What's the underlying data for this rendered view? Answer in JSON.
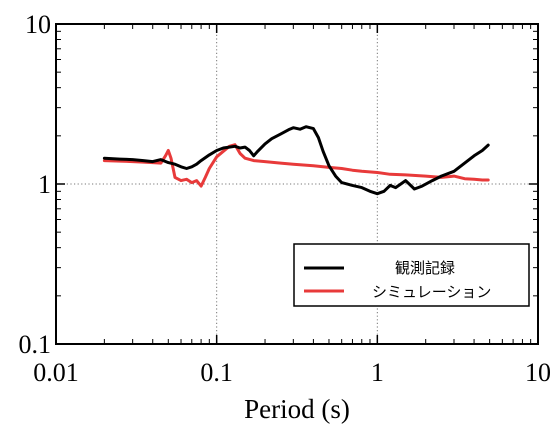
{
  "chart_data": {
    "type": "line",
    "xlabel": "Period (s)",
    "ylabel": "",
    "xscale": "log",
    "yscale": "log",
    "xlim": [
      0.01,
      10
    ],
    "ylim": [
      0.1,
      10
    ],
    "x_ticks": [
      {
        "value": 0.01,
        "label": "0.01"
      },
      {
        "value": 0.1,
        "label": "0.1"
      },
      {
        "value": 1,
        "label": "1"
      },
      {
        "value": 10,
        "label": "10"
      }
    ],
    "y_ticks": [
      {
        "value": 0.1,
        "label": "0.1"
      },
      {
        "value": 1,
        "label": "1"
      },
      {
        "value": 10,
        "label": "10"
      }
    ],
    "grid": "dotted at major ticks",
    "legend_position": "bottom-right",
    "series": [
      {
        "name": "観測記録",
        "color": "#000000",
        "points": [
          [
            0.02,
            1.45
          ],
          [
            0.025,
            1.43
          ],
          [
            0.03,
            1.42
          ],
          [
            0.035,
            1.4
          ],
          [
            0.04,
            1.38
          ],
          [
            0.045,
            1.42
          ],
          [
            0.05,
            1.36
          ],
          [
            0.055,
            1.33
          ],
          [
            0.06,
            1.28
          ],
          [
            0.065,
            1.25
          ],
          [
            0.07,
            1.28
          ],
          [
            0.075,
            1.33
          ],
          [
            0.08,
            1.4
          ],
          [
            0.09,
            1.52
          ],
          [
            0.1,
            1.62
          ],
          [
            0.11,
            1.68
          ],
          [
            0.12,
            1.7
          ],
          [
            0.13,
            1.72
          ],
          [
            0.14,
            1.68
          ],
          [
            0.15,
            1.7
          ],
          [
            0.16,
            1.62
          ],
          [
            0.17,
            1.5
          ],
          [
            0.18,
            1.6
          ],
          [
            0.2,
            1.78
          ],
          [
            0.22,
            1.92
          ],
          [
            0.25,
            2.05
          ],
          [
            0.28,
            2.18
          ],
          [
            0.3,
            2.25
          ],
          [
            0.33,
            2.2
          ],
          [
            0.36,
            2.28
          ],
          [
            0.4,
            2.22
          ],
          [
            0.43,
            1.95
          ],
          [
            0.46,
            1.6
          ],
          [
            0.5,
            1.3
          ],
          [
            0.55,
            1.12
          ],
          [
            0.6,
            1.02
          ],
          [
            0.7,
            0.98
          ],
          [
            0.8,
            0.95
          ],
          [
            0.9,
            0.9
          ],
          [
            1.0,
            0.87
          ],
          [
            1.1,
            0.9
          ],
          [
            1.2,
            0.98
          ],
          [
            1.3,
            0.95
          ],
          [
            1.4,
            1.0
          ],
          [
            1.5,
            1.05
          ],
          [
            1.7,
            0.93
          ],
          [
            1.9,
            0.97
          ],
          [
            2.2,
            1.05
          ],
          [
            2.5,
            1.12
          ],
          [
            3.0,
            1.2
          ],
          [
            3.5,
            1.35
          ],
          [
            4.0,
            1.5
          ],
          [
            4.5,
            1.62
          ],
          [
            4.9,
            1.75
          ]
        ]
      },
      {
        "name": "シミュレーション",
        "color": "#e83a3a",
        "points": [
          [
            0.02,
            1.4
          ],
          [
            0.025,
            1.39
          ],
          [
            0.03,
            1.38
          ],
          [
            0.035,
            1.37
          ],
          [
            0.04,
            1.36
          ],
          [
            0.045,
            1.35
          ],
          [
            0.048,
            1.5
          ],
          [
            0.05,
            1.62
          ],
          [
            0.052,
            1.45
          ],
          [
            0.055,
            1.1
          ],
          [
            0.06,
            1.05
          ],
          [
            0.065,
            1.07
          ],
          [
            0.07,
            1.02
          ],
          [
            0.075,
            1.05
          ],
          [
            0.08,
            0.97
          ],
          [
            0.085,
            1.1
          ],
          [
            0.09,
            1.25
          ],
          [
            0.1,
            1.48
          ],
          [
            0.11,
            1.6
          ],
          [
            0.12,
            1.72
          ],
          [
            0.13,
            1.76
          ],
          [
            0.14,
            1.55
          ],
          [
            0.15,
            1.45
          ],
          [
            0.17,
            1.4
          ],
          [
            0.2,
            1.38
          ],
          [
            0.25,
            1.35
          ],
          [
            0.3,
            1.33
          ],
          [
            0.4,
            1.3
          ],
          [
            0.5,
            1.27
          ],
          [
            0.6,
            1.25
          ],
          [
            0.7,
            1.22
          ],
          [
            0.8,
            1.2
          ],
          [
            1.0,
            1.18
          ],
          [
            1.2,
            1.15
          ],
          [
            1.5,
            1.14
          ],
          [
            2.0,
            1.12
          ],
          [
            2.5,
            1.1
          ],
          [
            3.0,
            1.12
          ],
          [
            3.5,
            1.08
          ],
          [
            4.0,
            1.07
          ],
          [
            4.5,
            1.06
          ],
          [
            4.9,
            1.06
          ]
        ]
      }
    ]
  }
}
